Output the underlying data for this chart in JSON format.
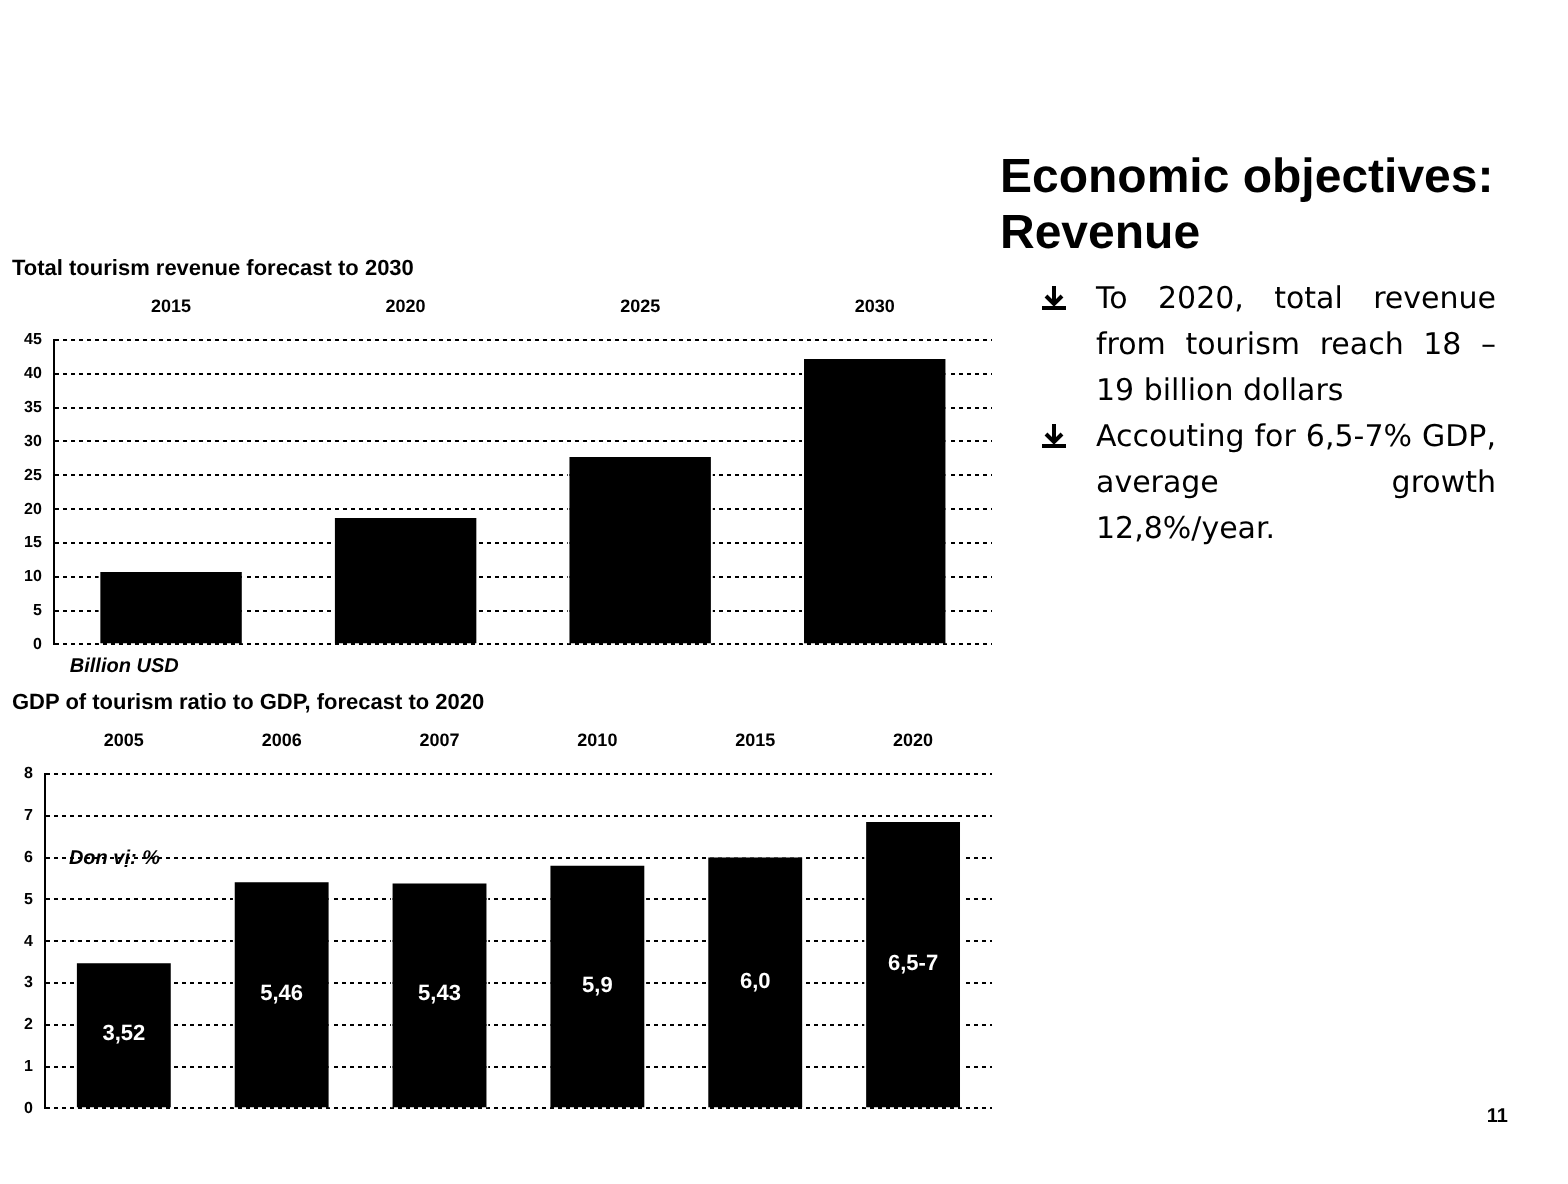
{
  "chart_data": [
    {
      "type": "bar",
      "title": "Total tourism revenue forecast to 2030",
      "categories": [
        "2015",
        "2020",
        "2025",
        "2030"
      ],
      "values": [
        11,
        19,
        28,
        42.5
      ],
      "color": "#000000",
      "ylim": [
        0,
        45
      ],
      "yticks": [
        0,
        5,
        10,
        15,
        20,
        25,
        30,
        35,
        40,
        45
      ],
      "grid": "y",
      "legend": false,
      "annotations": [
        "Billion USD"
      ]
    },
    {
      "type": "bar",
      "title": "GDP of tourism ratio to GDP, forecast to 2020",
      "categories": [
        "2005",
        "2006",
        "2007",
        "2010",
        "2015",
        "2020"
      ],
      "values": [
        3.52,
        5.46,
        5.43,
        5.85,
        6.05,
        6.9
      ],
      "value_labels": [
        "3,52",
        "5,46",
        "5,43",
        "5,9",
        "6,0",
        "6,5-7"
      ],
      "color": "#000000",
      "ylim": [
        0,
        8
      ],
      "yticks": [
        0,
        1,
        2,
        3,
        4,
        5,
        6,
        7,
        8
      ],
      "grid": "y",
      "legend": false,
      "annotations": [
        "Don vị: %"
      ]
    },
    {
      "type": "other",
      "title": "Economic objectives: Revenue",
      "annotations": [
        "To 2020, total revenue from tourism reach 18 – 19 billion dollars",
        "Accouting for 6,5-7% GDP, average growth 12,8%/year.",
        "11"
      ]
    }
  ]
}
